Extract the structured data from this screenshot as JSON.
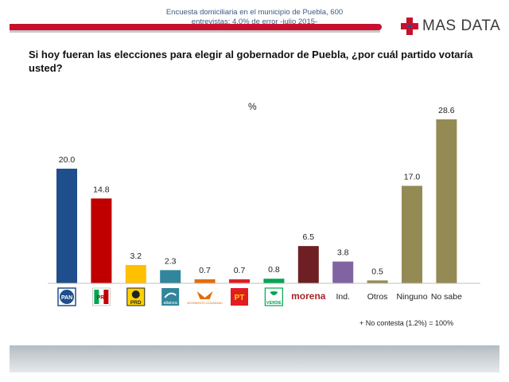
{
  "header": {
    "logo_text": "MAS DATA",
    "accent_color": "#c8102e"
  },
  "question": "Si hoy fueran las elecciones para elegir al gobernador de Puebla, ¿por cuál partido votaría usted?",
  "footnote": "+ No contesta (1.2%) = 100%",
  "footer": {
    "line1": "Encuesta domiciliaria en el municipio de Puebla, 600",
    "line2": "entrevistas: 4.0% de error -julio 2015-"
  },
  "chart_data": {
    "type": "bar",
    "unit_label": "%",
    "categories": [
      "PAN",
      "PRI",
      "PRD",
      "alianza",
      "MOVIMIENTO CIUDADANO",
      "PT",
      "VERDE",
      "morena",
      "Ind.",
      "Otros",
      "Ninguno",
      "No sabe"
    ],
    "values": [
      20.0,
      14.8,
      3.2,
      2.3,
      0.7,
      0.7,
      0.8,
      6.5,
      3.8,
      0.5,
      17.0,
      28.6
    ],
    "value_labels": [
      "20.0",
      "14.8",
      "3.2",
      "2.3",
      "0.7",
      "0.7",
      "0.8",
      "6.5",
      "3.8",
      "0.5",
      "17.0",
      "28.6"
    ],
    "colors": [
      "#1f4e8c",
      "#c00000",
      "#ffc000",
      "#31859c",
      "#e46c0a",
      "#e31b23",
      "#00a651",
      "#6e1f23",
      "#8064a2",
      "#948a54",
      "#948a54",
      "#948a54"
    ],
    "tick_labels": [
      "",
      "",
      "",
      "",
      "",
      "",
      "",
      "morena",
      "Ind.",
      "Otros",
      "Ninguno",
      "No sabe"
    ],
    "ylim": [
      0,
      30
    ],
    "grid": false
  }
}
